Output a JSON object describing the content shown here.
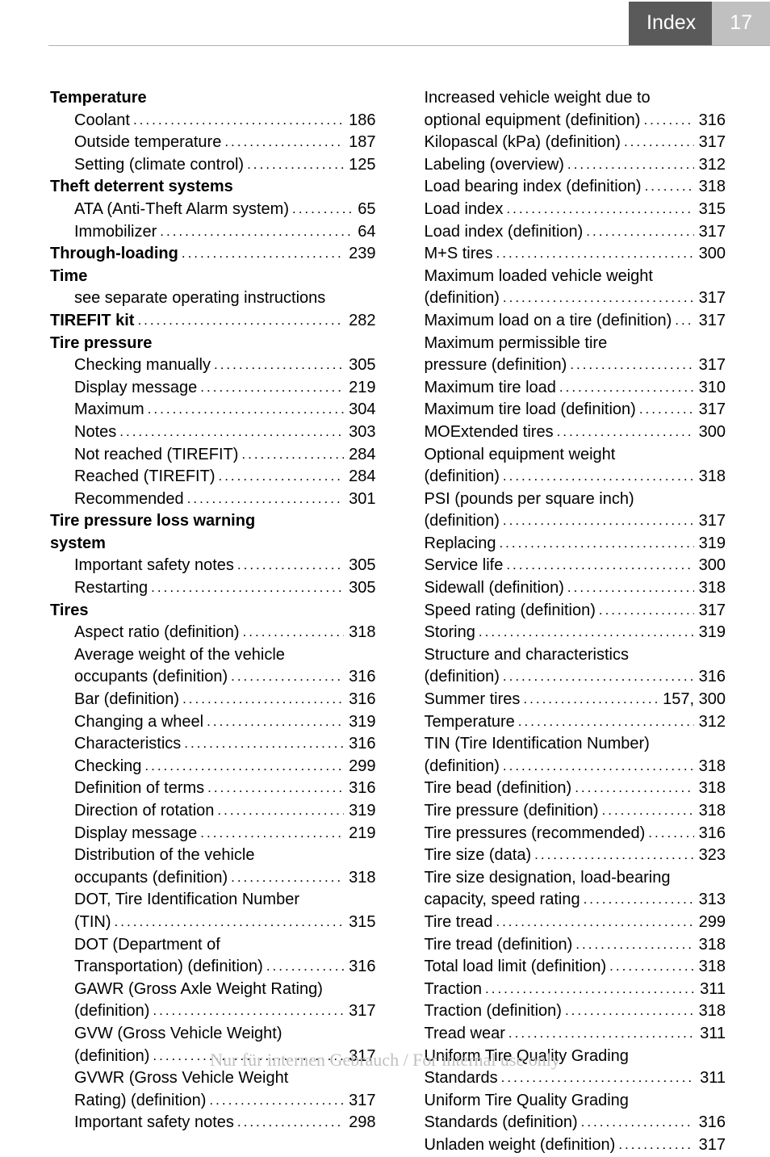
{
  "header": {
    "title": "Index",
    "page_number": "17"
  },
  "footer": {
    "watermark": "Nur für internen Gebrauch / For internal use only"
  },
  "left_column": [
    {
      "type": "heading",
      "label": "Temperature"
    },
    {
      "type": "entry",
      "indent": true,
      "label": "Coolant",
      "page": "186"
    },
    {
      "type": "entry",
      "indent": true,
      "label": "Outside temperature",
      "page": "187"
    },
    {
      "type": "entry",
      "indent": true,
      "label": "Setting (climate control)",
      "page": "125"
    },
    {
      "type": "heading",
      "label": "Theft deterrent systems"
    },
    {
      "type": "entry",
      "indent": true,
      "label": "ATA (Anti-Theft Alarm system)",
      "page": "65"
    },
    {
      "type": "entry",
      "indent": true,
      "label": "Immobilizer",
      "page": "64"
    },
    {
      "type": "entry",
      "bold": true,
      "label": "Through-loading",
      "page": "239"
    },
    {
      "type": "heading",
      "label": "Time"
    },
    {
      "type": "plain",
      "indent": true,
      "label": "see separate operating instructions"
    },
    {
      "type": "entry",
      "bold": true,
      "label": "TIREFIT kit",
      "page": "282"
    },
    {
      "type": "heading",
      "label": "Tire pressure"
    },
    {
      "type": "entry",
      "indent": true,
      "label": "Checking manually",
      "page": "305"
    },
    {
      "type": "entry",
      "indent": true,
      "label": "Display message",
      "page": "219"
    },
    {
      "type": "entry",
      "indent": true,
      "label": "Maximum",
      "page": "304"
    },
    {
      "type": "entry",
      "indent": true,
      "label": "Notes",
      "page": "303"
    },
    {
      "type": "entry",
      "indent": true,
      "label": "Not reached (TIREFIT)",
      "page": "284"
    },
    {
      "type": "entry",
      "indent": true,
      "label": "Reached (TIREFIT)",
      "page": "284"
    },
    {
      "type": "entry",
      "indent": true,
      "label": "Recommended",
      "page": "301"
    },
    {
      "type": "heading",
      "label": "Tire pressure loss warning"
    },
    {
      "type": "heading",
      "label": "system"
    },
    {
      "type": "entry",
      "indent": true,
      "label": "Important safety notes",
      "page": "305"
    },
    {
      "type": "entry",
      "indent": true,
      "label": "Restarting",
      "page": "305"
    },
    {
      "type": "heading",
      "label": "Tires"
    },
    {
      "type": "entry",
      "indent": true,
      "label": "Aspect ratio (definition)",
      "page": "318"
    },
    {
      "type": "plain",
      "indent": true,
      "label": "Average weight of the vehicle"
    },
    {
      "type": "entry",
      "indent": true,
      "label": "occupants (definition)",
      "page": "316"
    },
    {
      "type": "entry",
      "indent": true,
      "label": "Bar (definition)",
      "page": "316"
    },
    {
      "type": "entry",
      "indent": true,
      "label": "Changing a wheel",
      "page": "319"
    },
    {
      "type": "entry",
      "indent": true,
      "label": "Characteristics",
      "page": "316"
    },
    {
      "type": "entry",
      "indent": true,
      "label": "Checking",
      "page": "299"
    },
    {
      "type": "entry",
      "indent": true,
      "label": "Definition of terms",
      "page": "316"
    },
    {
      "type": "entry",
      "indent": true,
      "label": "Direction of rotation",
      "page": "319"
    },
    {
      "type": "entry",
      "indent": true,
      "label": "Display message",
      "page": "219"
    },
    {
      "type": "plain",
      "indent": true,
      "label": "Distribution of the vehicle"
    },
    {
      "type": "entry",
      "indent": true,
      "label": "occupants (definition)",
      "page": "318"
    },
    {
      "type": "plain",
      "indent": true,
      "label": "DOT, Tire Identification Number"
    },
    {
      "type": "entry",
      "indent": true,
      "label": "(TIN)",
      "page": "315"
    },
    {
      "type": "plain",
      "indent": true,
      "label": "DOT (Department of"
    },
    {
      "type": "entry",
      "indent": true,
      "label": "Transportation) (definition)",
      "page": "316"
    },
    {
      "type": "plain",
      "indent": true,
      "label": "GAWR (Gross Axle Weight Rating)"
    },
    {
      "type": "entry",
      "indent": true,
      "label": "(definition)",
      "page": "317"
    },
    {
      "type": "plain",
      "indent": true,
      "label": "GVW (Gross Vehicle Weight)"
    },
    {
      "type": "entry",
      "indent": true,
      "label": "(definition)",
      "page": "317"
    },
    {
      "type": "plain",
      "indent": true,
      "label": "GVWR (Gross Vehicle Weight"
    },
    {
      "type": "entry",
      "indent": true,
      "label": "Rating) (definition)",
      "page": "317"
    },
    {
      "type": "entry",
      "indent": true,
      "label": "Important safety notes",
      "page": "298"
    }
  ],
  "right_column": [
    {
      "type": "plain",
      "indent": true,
      "label": "Increased vehicle weight due to"
    },
    {
      "type": "entry",
      "indent": true,
      "label": "optional equipment (definition)",
      "page": "316"
    },
    {
      "type": "entry",
      "indent": true,
      "label": "Kilopascal (kPa) (definition)",
      "page": "317"
    },
    {
      "type": "entry",
      "indent": true,
      "label": "Labeling (overview)",
      "page": "312"
    },
    {
      "type": "entry",
      "indent": true,
      "label": "Load bearing index (definition)",
      "page": "318"
    },
    {
      "type": "entry",
      "indent": true,
      "label": "Load index",
      "page": "315"
    },
    {
      "type": "entry",
      "indent": true,
      "label": "Load index (definition)",
      "page": "317"
    },
    {
      "type": "entry",
      "indent": true,
      "label": "M+S tires",
      "page": "300"
    },
    {
      "type": "plain",
      "indent": true,
      "label": "Maximum loaded vehicle weight"
    },
    {
      "type": "entry",
      "indent": true,
      "label": "(definition)",
      "page": "317"
    },
    {
      "type": "entry",
      "indent": true,
      "label": "Maximum load on a tire (definition)",
      "page": "317"
    },
    {
      "type": "plain",
      "indent": true,
      "label": "Maximum permissible tire"
    },
    {
      "type": "entry",
      "indent": true,
      "label": "pressure (definition)",
      "page": "317"
    },
    {
      "type": "entry",
      "indent": true,
      "label": "Maximum tire load",
      "page": "310"
    },
    {
      "type": "entry",
      "indent": true,
      "label": "Maximum tire load (definition)",
      "page": "317"
    },
    {
      "type": "entry",
      "indent": true,
      "label": "MOExtended tires",
      "page": "300"
    },
    {
      "type": "plain",
      "indent": true,
      "label": "Optional equipment weight"
    },
    {
      "type": "entry",
      "indent": true,
      "label": "(definition)",
      "page": "318"
    },
    {
      "type": "plain",
      "indent": true,
      "label": "PSI (pounds per square inch)"
    },
    {
      "type": "entry",
      "indent": true,
      "label": "(definition)",
      "page": "317"
    },
    {
      "type": "entry",
      "indent": true,
      "label": "Replacing",
      "page": "319"
    },
    {
      "type": "entry",
      "indent": true,
      "label": "Service life",
      "page": "300"
    },
    {
      "type": "entry",
      "indent": true,
      "label": "Sidewall (definition)",
      "page": "318"
    },
    {
      "type": "entry",
      "indent": true,
      "label": "Speed rating (definition)",
      "page": "317"
    },
    {
      "type": "entry",
      "indent": true,
      "label": "Storing",
      "page": "319"
    },
    {
      "type": "plain",
      "indent": true,
      "label": "Structure and characteristics"
    },
    {
      "type": "entry",
      "indent": true,
      "label": "(definition)",
      "page": "316"
    },
    {
      "type": "entry",
      "indent": true,
      "label": "Summer tires",
      "page": "157, 300"
    },
    {
      "type": "entry",
      "indent": true,
      "label": "Temperature",
      "page": "312"
    },
    {
      "type": "plain",
      "indent": true,
      "label": "TIN (Tire Identification Number)"
    },
    {
      "type": "entry",
      "indent": true,
      "label": "(definition)",
      "page": "318"
    },
    {
      "type": "entry",
      "indent": true,
      "label": "Tire bead (definition)",
      "page": "318"
    },
    {
      "type": "entry",
      "indent": true,
      "label": "Tire pressure (definition)",
      "page": "318"
    },
    {
      "type": "entry",
      "indent": true,
      "label": "Tire pressures (recommended)",
      "page": "316"
    },
    {
      "type": "entry",
      "indent": true,
      "label": "Tire size (data)",
      "page": "323"
    },
    {
      "type": "plain",
      "indent": true,
      "label": "Tire size designation, load-bearing"
    },
    {
      "type": "entry",
      "indent": true,
      "label": "capacity, speed rating",
      "page": "313"
    },
    {
      "type": "entry",
      "indent": true,
      "label": "Tire tread",
      "page": "299"
    },
    {
      "type": "entry",
      "indent": true,
      "label": "Tire tread (definition)",
      "page": "318"
    },
    {
      "type": "entry",
      "indent": true,
      "label": "Total load limit (definition)",
      "page": "318"
    },
    {
      "type": "entry",
      "indent": true,
      "label": "Traction",
      "page": "311"
    },
    {
      "type": "entry",
      "indent": true,
      "label": "Traction (definition)",
      "page": "318"
    },
    {
      "type": "entry",
      "indent": true,
      "label": "Tread wear",
      "page": "311"
    },
    {
      "type": "plain",
      "indent": true,
      "label": "Uniform Tire Quality Grading"
    },
    {
      "type": "entry",
      "indent": true,
      "label": "Standards",
      "page": "311"
    },
    {
      "type": "plain",
      "indent": true,
      "label": "Uniform Tire Quality Grading"
    },
    {
      "type": "entry",
      "indent": true,
      "label": "Standards (definition)",
      "page": "316"
    },
    {
      "type": "entry",
      "indent": true,
      "label": "Unladen weight (definition)",
      "page": "317"
    }
  ]
}
